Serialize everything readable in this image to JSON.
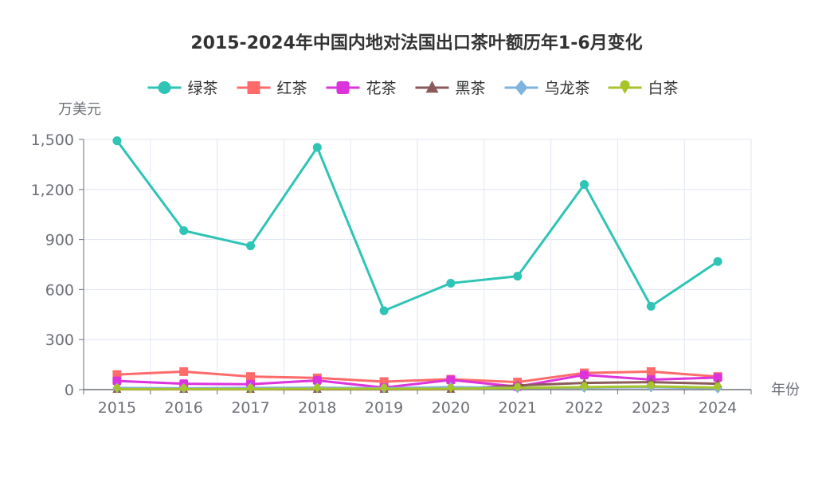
{
  "chart_data": {
    "type": "line",
    "title": "2015-2024年中国内地对法国出口茶叶额历年1-6月变化",
    "ylabel": "万美元",
    "xlabel": "年份",
    "ylim": [
      0,
      1500
    ],
    "yticks": [
      0,
      300,
      600,
      900,
      1200,
      1500
    ],
    "ytick_labels": [
      "0",
      "300",
      "600",
      "900",
      "1,200",
      "1,500"
    ],
    "grid": true,
    "legend_position": "top",
    "categories": [
      "2015",
      "2016",
      "2017",
      "2018",
      "2019",
      "2020",
      "2021",
      "2022",
      "2023",
      "2024"
    ],
    "series": [
      {
        "name": "绿茶",
        "color": "#2ec4b6",
        "marker": "circle",
        "values": [
          1492,
          953,
          862,
          1452,
          473,
          638,
          680,
          1230,
          500,
          768
        ]
      },
      {
        "name": "红茶",
        "color": "#ff6b6b",
        "marker": "square",
        "values": [
          90,
          108,
          78,
          70,
          48,
          62,
          45,
          100,
          108,
          78
        ]
      },
      {
        "name": "花茶",
        "color": "#dd33dd",
        "marker": "roundrect",
        "values": [
          52,
          35,
          32,
          55,
          12,
          58,
          18,
          88,
          60,
          72
        ]
      },
      {
        "name": "黑茶",
        "color": "#8b5a5a",
        "marker": "triangle",
        "values": [
          2,
          2,
          2,
          2,
          2,
          2,
          25,
          40,
          45,
          35
        ]
      },
      {
        "name": "乌龙茶",
        "color": "#7fb3e0",
        "marker": "diamond",
        "values": [
          10,
          8,
          10,
          12,
          8,
          15,
          10,
          12,
          15,
          8
        ]
      },
      {
        "name": "白茶",
        "color": "#a8c42c",
        "marker": "pin",
        "values": [
          3,
          3,
          3,
          5,
          5,
          5,
          10,
          15,
          20,
          12
        ]
      }
    ]
  }
}
